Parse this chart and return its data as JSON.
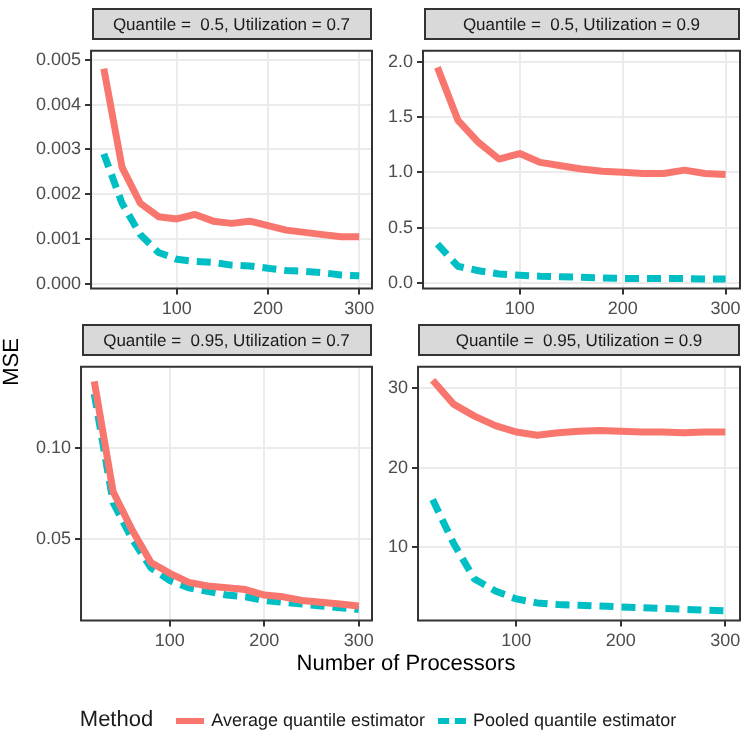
{
  "chart_data": [
    {
      "type": "line",
      "title": "Quantile =  0.5, Utilization = 0.7",
      "ylabel": "MSE",
      "legend": "bottom",
      "legend_title": "Method",
      "marker": "none",
      "grid": true,
      "x": [
        20,
        40,
        60,
        80,
        100,
        120,
        140,
        160,
        180,
        200,
        220,
        240,
        260,
        280,
        300
      ],
      "xlim": [
        6,
        314
      ],
      "xticks": [
        100,
        200,
        300
      ],
      "ylim": [
        -0.0001,
        0.0052
      ],
      "yticks": [
        {
          "value": 0,
          "label": "0.000"
        },
        {
          "value": 0.001,
          "label": "0.001"
        },
        {
          "value": 0.002,
          "label": "0.002"
        },
        {
          "value": 0.003,
          "label": "0.003"
        },
        {
          "value": 0.004,
          "label": "0.004"
        },
        {
          "value": 0.005,
          "label": "0.005"
        }
      ],
      "series": [
        {
          "name": "Average quantile estimator",
          "color": "#f8766d",
          "line_style": "solid",
          "values": [
            0.0048,
            0.0026,
            0.0018,
            0.0015,
            0.00145,
            0.00155,
            0.0014,
            0.00135,
            0.0014,
            0.0013,
            0.0012,
            0.00115,
            0.0011,
            0.00105,
            0.00105
          ]
        },
        {
          "name": "Pooled quantile estimator",
          "color": "#00bfc4",
          "line_style": "dashed",
          "values": [
            0.0029,
            0.0018,
            0.0011,
            0.0007,
            0.00055,
            0.0005,
            0.00048,
            0.00042,
            0.0004,
            0.00035,
            0.0003,
            0.00028,
            0.00025,
            0.0002,
            0.00018
          ]
        }
      ]
    },
    {
      "type": "line",
      "title": "Quantile =  0.5, Utilization = 0.9",
      "marker": "none",
      "grid": true,
      "x": [
        20,
        40,
        60,
        80,
        100,
        120,
        140,
        160,
        180,
        200,
        220,
        240,
        260,
        280,
        300
      ],
      "xlim": [
        6,
        314
      ],
      "xticks": [
        100,
        200,
        300
      ],
      "ylim": [
        -0.05,
        2.1
      ],
      "yticks": [
        {
          "value": 0,
          "label": "0.0"
        },
        {
          "value": 0.5,
          "label": "0.5"
        },
        {
          "value": 1,
          "label": "1.0"
        },
        {
          "value": 1.5,
          "label": "1.5"
        },
        {
          "value": 2,
          "label": "2.0"
        }
      ],
      "series": [
        {
          "color": "#f8766d",
          "line_style": "solid",
          "values": [
            1.95,
            1.47,
            1.27,
            1.12,
            1.17,
            1.09,
            1.06,
            1.03,
            1.01,
            1.0,
            0.99,
            0.99,
            1.02,
            0.99,
            0.98
          ]
        },
        {
          "color": "#00bfc4",
          "line_style": "dashed",
          "values": [
            0.35,
            0.15,
            0.11,
            0.08,
            0.07,
            0.06,
            0.055,
            0.05,
            0.045,
            0.04,
            0.04,
            0.04,
            0.04,
            0.035,
            0.035
          ]
        }
      ]
    },
    {
      "type": "line",
      "title": "Quantile =  0.95, Utilization = 0.7",
      "xlabel": "Number of Processors",
      "marker": "none",
      "grid": true,
      "x": [
        20,
        40,
        60,
        80,
        100,
        120,
        140,
        160,
        180,
        200,
        220,
        240,
        260,
        280,
        300
      ],
      "xlim": [
        6,
        314
      ],
      "xticks": [
        100,
        200,
        300
      ],
      "ylim": [
        0.005,
        0.145
      ],
      "yticks": [
        {
          "value": 0.05,
          "label": "0.05"
        },
        {
          "value": 0.1,
          "label": "0.10"
        }
      ],
      "series": [
        {
          "color": "#f8766d",
          "line_style": "solid",
          "values": [
            0.137,
            0.076,
            0.055,
            0.037,
            0.031,
            0.026,
            0.024,
            0.023,
            0.022,
            0.019,
            0.018,
            0.016,
            0.015,
            0.014,
            0.013
          ]
        },
        {
          "color": "#00bfc4",
          "line_style": "dashed",
          "values": [
            0.13,
            0.07,
            0.05,
            0.034,
            0.027,
            0.023,
            0.021,
            0.019,
            0.018,
            0.016,
            0.015,
            0.014,
            0.013,
            0.012,
            0.011
          ]
        }
      ]
    },
    {
      "type": "line",
      "title": "Quantile =  0.95, Utilization = 0.9",
      "marker": "none",
      "grid": true,
      "x": [
        20,
        40,
        60,
        80,
        100,
        120,
        140,
        160,
        180,
        200,
        220,
        240,
        260,
        280,
        300
      ],
      "xlim": [
        6,
        314
      ],
      "xticks": [
        100,
        200,
        300
      ],
      "ylim": [
        0.8,
        32.7
      ],
      "yticks": [
        10,
        20,
        30
      ],
      "series": [
        {
          "color": "#f8766d",
          "line_style": "solid",
          "values": [
            31,
            28,
            26.5,
            25.3,
            24.5,
            24.1,
            24.4,
            24.6,
            24.7,
            24.6,
            24.5,
            24.5,
            24.4,
            24.5,
            24.5
          ]
        },
        {
          "color": "#00bfc4",
          "line_style": "dashed",
          "values": [
            16,
            10.5,
            6,
            4.5,
            3.5,
            3,
            2.8,
            2.7,
            2.6,
            2.5,
            2.4,
            2.3,
            2.2,
            2.1,
            2.0
          ]
        }
      ]
    }
  ]
}
